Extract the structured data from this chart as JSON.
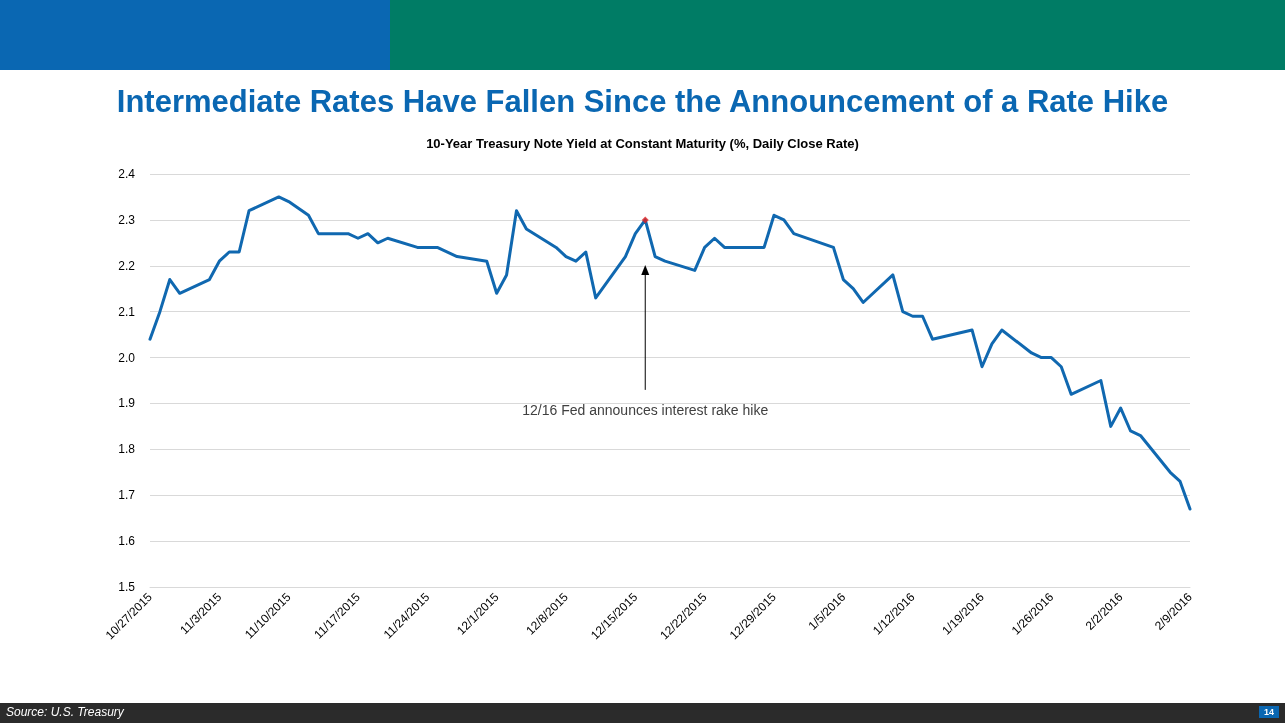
{
  "chart_data": {
    "type": "line",
    "title": "Intermediate Rates Have Fallen Since the Announcement of a Rate Hike",
    "subtitle": "10-Year Treasury Note Yield at Constant Maturity (%, Daily Close Rate)",
    "x": [
      "2015-10-27",
      "2015-10-28",
      "2015-10-29",
      "2015-10-30",
      "2015-11-02",
      "2015-11-03",
      "2015-11-04",
      "2015-11-05",
      "2015-11-06",
      "2015-11-09",
      "2015-11-10",
      "2015-11-12",
      "2015-11-13",
      "2015-11-16",
      "2015-11-17",
      "2015-11-18",
      "2015-11-19",
      "2015-11-20",
      "2015-11-23",
      "2015-11-24",
      "2015-11-25",
      "2015-11-27",
      "2015-11-30",
      "2015-12-01",
      "2015-12-02",
      "2015-12-03",
      "2015-12-04",
      "2015-12-07",
      "2015-12-08",
      "2015-12-09",
      "2015-12-10",
      "2015-12-11",
      "2015-12-14",
      "2015-12-15",
      "2015-12-16",
      "2015-12-17",
      "2015-12-18",
      "2015-12-21",
      "2015-12-22",
      "2015-12-23",
      "2015-12-24",
      "2015-12-28",
      "2015-12-29",
      "2015-12-30",
      "2015-12-31",
      "2016-01-04",
      "2016-01-05",
      "2016-01-06",
      "2016-01-07",
      "2016-01-10",
      "2016-01-11",
      "2016-01-12",
      "2016-01-13",
      "2016-01-14",
      "2016-01-18",
      "2016-01-19",
      "2016-01-20",
      "2016-01-21",
      "2016-01-24",
      "2016-01-25",
      "2016-01-26",
      "2016-01-27",
      "2016-01-28",
      "2016-01-31",
      "2016-02-01",
      "2016-02-02",
      "2016-02-03",
      "2016-02-04",
      "2016-02-07",
      "2016-02-08",
      "2016-02-09"
    ],
    "series": [
      {
        "color": "#1068b0",
        "values": [
          2.04,
          2.1,
          2.17,
          2.14,
          2.17,
          2.21,
          2.23,
          2.23,
          2.32,
          2.35,
          2.34,
          2.31,
          2.27,
          2.27,
          2.26,
          2.27,
          2.25,
          2.26,
          2.24,
          2.24,
          2.24,
          2.22,
          2.21,
          2.14,
          2.18,
          2.32,
          2.28,
          2.24,
          2.22,
          2.21,
          2.23,
          2.13,
          2.22,
          2.27,
          2.3,
          2.22,
          2.21,
          2.19,
          2.24,
          2.26,
          2.24,
          2.24,
          2.31,
          2.3,
          2.27,
          2.24,
          2.17,
          2.15,
          2.12,
          2.18,
          2.1,
          2.09,
          2.09,
          2.04,
          2.06,
          1.98,
          2.03,
          2.06,
          2.01,
          2.0,
          2.0,
          1.98,
          1.92,
          1.95,
          1.85,
          1.89,
          1.84,
          1.83,
          1.75,
          1.73,
          1.67
        ]
      },
      {
        "type": "scatter",
        "color": "#e02020",
        "marker": "diamond",
        "x": [
          "2015-12-16"
        ],
        "values": [
          2.3
        ]
      }
    ],
    "xlim": [
      "2015-10-27",
      "2016-02-09"
    ],
    "xticks": [
      {
        "value": "2015-10-27",
        "label": "10/27/2015"
      },
      {
        "value": "2015-11-03",
        "label": "11/3/2015"
      },
      {
        "value": "2015-11-10",
        "label": "11/10/2015"
      },
      {
        "value": "2015-11-17",
        "label": "11/17/2015"
      },
      {
        "value": "2015-11-24",
        "label": "11/24/2015"
      },
      {
        "value": "2015-12-01",
        "label": "12/1/2015"
      },
      {
        "value": "2015-12-08",
        "label": "12/8/2015"
      },
      {
        "value": "2015-12-15",
        "label": "12/15/2015"
      },
      {
        "value": "2015-12-22",
        "label": "12/22/2015"
      },
      {
        "value": "2015-12-29",
        "label": "12/29/2015"
      },
      {
        "value": "2016-01-05",
        "label": "1/5/2016"
      },
      {
        "value": "2016-01-12",
        "label": "1/12/2016"
      },
      {
        "value": "2016-01-19",
        "label": "1/19/2016"
      },
      {
        "value": "2016-01-26",
        "label": "1/26/2016"
      },
      {
        "value": "2016-02-02",
        "label": "2/2/2016"
      },
      {
        "value": "2016-02-09",
        "label": "2/9/2016"
      }
    ],
    "ylim": [
      1.5,
      2.4
    ],
    "yticks": [
      1.5,
      1.6,
      1.7,
      1.8,
      1.9,
      {
        "value": 2,
        "label": "2.0"
      },
      2.1,
      2.2,
      2.3,
      2.4
    ],
    "grid": "y",
    "marker": "none",
    "line_style": "solid",
    "annotations": [
      "12/16 Fed announces interest rake hike",
      "Source: U.S. Treasury",
      "14"
    ]
  }
}
